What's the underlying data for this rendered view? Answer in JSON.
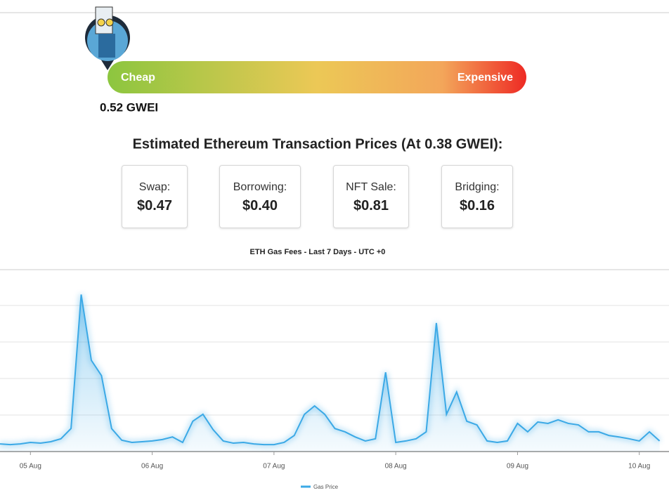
{
  "gauge": {
    "low_label": "Cheap",
    "high_label": "Expensive",
    "reading": "0.52 GWEI"
  },
  "estimates": {
    "title": "Estimated Ethereum Transaction Prices (At 0.38 GWEI):",
    "cards": [
      {
        "label": "Swap:",
        "price": "$0.47"
      },
      {
        "label": "Borrowing:",
        "price": "$0.40"
      },
      {
        "label": "NFT Sale:",
        "price": "$0.81"
      },
      {
        "label": "Bridging:",
        "price": "$0.16"
      }
    ]
  },
  "chart_data": {
    "type": "area",
    "title": "ETH Gas Fees - Last 7 Days - UTC +0",
    "categories": [
      null,
      null,
      null,
      "05 Aug",
      null,
      null,
      null,
      null,
      null,
      null,
      null,
      null,
      null,
      null,
      null,
      "06 Aug",
      null,
      null,
      null,
      null,
      null,
      null,
      null,
      null,
      null,
      null,
      null,
      "07 Aug",
      null,
      null,
      null,
      null,
      null,
      null,
      null,
      null,
      null,
      null,
      null,
      "08 Aug",
      null,
      null,
      null,
      null,
      null,
      null,
      null,
      null,
      null,
      null,
      null,
      "09 Aug",
      null,
      null,
      null,
      null,
      null,
      null,
      null,
      null,
      null,
      null,
      null,
      "10 Aug",
      null,
      null
    ],
    "series": [
      {
        "name": "Gas Price",
        "color": "#3ba9e6",
        "values": [
          0.21,
          0.19,
          0.21,
          0.25,
          0.23,
          0.27,
          0.35,
          0.63,
          4.3,
          2.5,
          2.08,
          0.63,
          0.31,
          0.25,
          0.27,
          0.29,
          0.33,
          0.4,
          0.25,
          0.83,
          1.02,
          0.6,
          0.29,
          0.23,
          0.25,
          0.21,
          0.19,
          0.19,
          0.25,
          0.44,
          1.02,
          1.25,
          1.02,
          0.63,
          0.54,
          0.4,
          0.29,
          0.35,
          2.17,
          0.25,
          0.29,
          0.35,
          0.54,
          3.52,
          1.02,
          1.63,
          0.83,
          0.73,
          0.29,
          0.25,
          0.29,
          0.77,
          0.54,
          0.81,
          0.77,
          0.87,
          0.77,
          0.73,
          0.54,
          0.54,
          0.44,
          0.4,
          0.35,
          0.29,
          0.54,
          0.29
        ]
      }
    ],
    "ylim": [
      0,
      5
    ],
    "yticks": [
      0,
      1,
      2,
      3,
      4
    ],
    "grid": true
  }
}
